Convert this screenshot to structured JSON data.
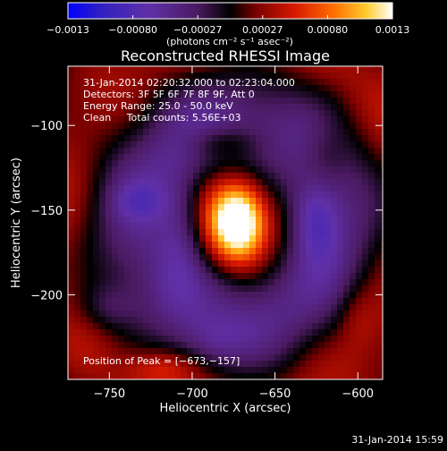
{
  "chart_data": {
    "type": "heatmap",
    "title": "Reconstructed RHESSI Image",
    "xlabel": "Heliocentric X (arcsec)",
    "ylabel": "Heliocentric Y (arcsec)",
    "xlim": [
      -775,
      -585
    ],
    "ylim": [
      -250,
      -65
    ],
    "x_ticks": [
      {
        "value": -750,
        "label": "−750"
      },
      {
        "value": -700,
        "label": "−700"
      },
      {
        "value": -650,
        "label": "−650"
      },
      {
        "value": -600,
        "label": "−600"
      }
    ],
    "y_ticks": [
      {
        "value": -100,
        "label": "−100"
      },
      {
        "value": -150,
        "label": "−150"
      },
      {
        "value": -200,
        "label": "−200"
      }
    ],
    "colorbar": {
      "min": -0.0013,
      "max": 0.0013,
      "tick_labels": [
        "−0.0013",
        "−0.00080",
        "−0.00027",
        "0.00027",
        "0.00080",
        "0.0013"
      ],
      "unit_label": "(photons cm⁻² s⁻¹ asec⁻²)"
    },
    "annotations": {
      "time_range": "31-Jan-2014 02:20:32.000 to 02:23:04.000",
      "detectors": "Detectors: 3F 5F 6F 7F 8F 9F, Att 0",
      "energy_range": "Energy Range: 25.0 - 50.0 keV",
      "clean_counts": "Clean     Total counts: 5.56E+03",
      "peak_position": "Position of Peak = [−673,−157]"
    },
    "peak": {
      "x": -673,
      "y": -157
    },
    "timestamp": "31-Jan-2014 15:59"
  },
  "colors": {
    "background": "#000000",
    "text": "#ffffff",
    "colormap_stops": [
      "#0000ff",
      "#4b1fa8",
      "#7a3aa0",
      "#000000",
      "#8a0000",
      "#e02000",
      "#ff7a00",
      "#ffd23a",
      "#ffffff"
    ]
  }
}
